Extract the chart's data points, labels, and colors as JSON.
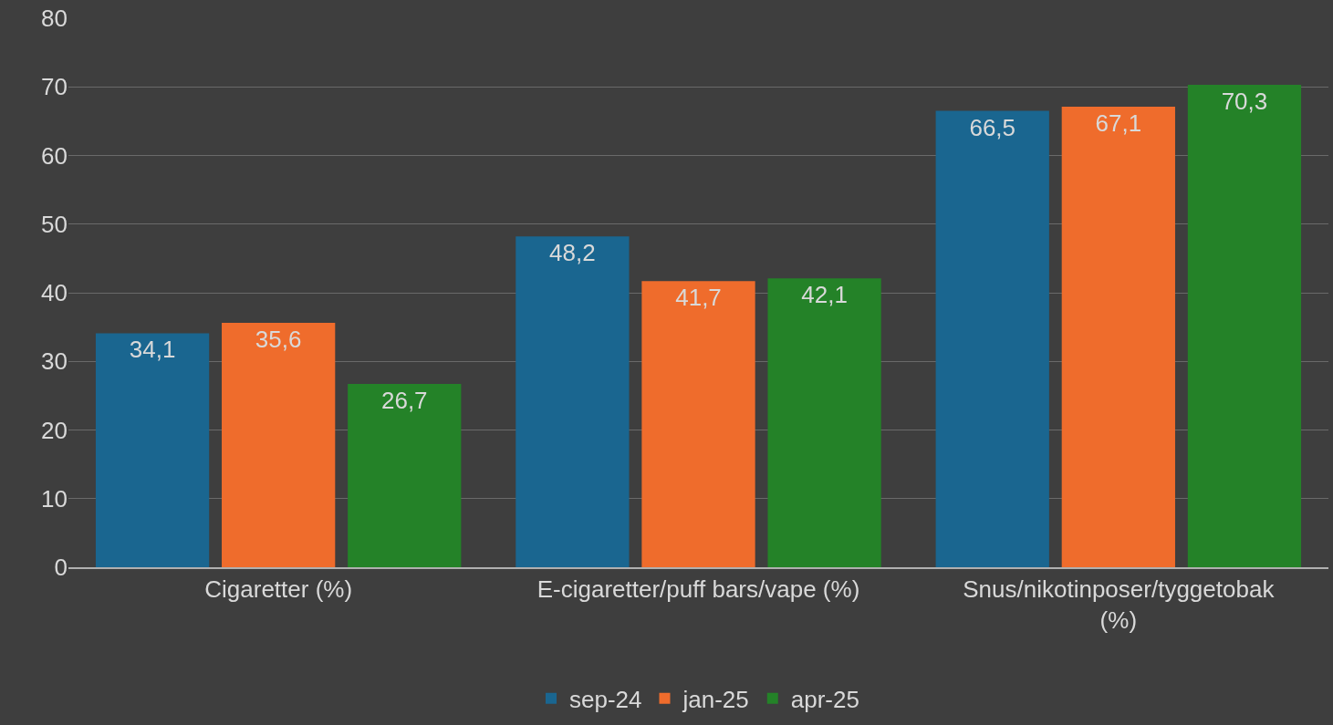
{
  "chart_data": {
    "type": "bar",
    "categories": [
      "Cigaretter (%)",
      "E-cigaretter/puff bars/vape (%)",
      "Snus/nikotinposer/tyggetobak (%)"
    ],
    "series": [
      {
        "name": "sep-24",
        "color": "#1a6690",
        "values": [
          34.1,
          48.2,
          66.5
        ],
        "value_labels": [
          "34,1",
          "48,2",
          "66,5"
        ]
      },
      {
        "name": "jan-25",
        "color": "#ef6c2c",
        "values": [
          35.6,
          41.7,
          67.1
        ],
        "value_labels": [
          "35,6",
          "41,7",
          "67,1"
        ]
      },
      {
        "name": "apr-25",
        "color": "#248228",
        "values": [
          26.7,
          42.1,
          70.3
        ],
        "value_labels": [
          "26,7",
          "42,1",
          "70,3"
        ]
      }
    ],
    "ylim": [
      0,
      80
    ],
    "yticks": [
      0,
      10,
      20,
      30,
      40,
      50,
      60,
      70,
      80
    ],
    "grid": "y",
    "legend": "bottom"
  }
}
